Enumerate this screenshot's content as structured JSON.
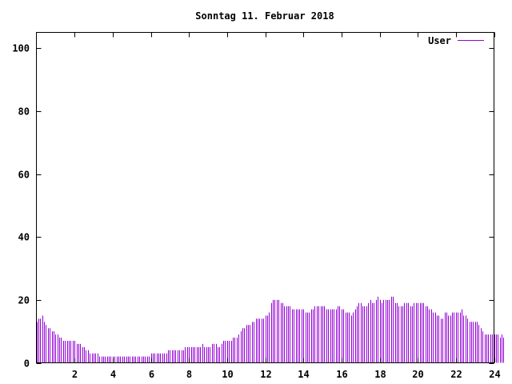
{
  "chart_data": {
    "type": "bar",
    "title": "Sonntag 11. Februar 2018",
    "xlabel": "",
    "ylabel": "",
    "xlim": [
      0,
      24
    ],
    "ylim": [
      0,
      105
    ],
    "x_ticks": [
      2,
      4,
      6,
      8,
      10,
      12,
      14,
      16,
      18,
      20,
      22,
      24
    ],
    "y_ticks": [
      0,
      20,
      40,
      60,
      80,
      100
    ],
    "grid": false,
    "legend_position": "top-right",
    "series": [
      {
        "name": "User",
        "color": "#9400d3",
        "interval_hours": 0.1,
        "values": [
          13,
          14,
          14,
          15,
          13,
          12,
          11,
          11,
          10,
          10,
          9,
          9,
          8,
          8,
          7,
          7,
          7,
          7,
          7,
          7,
          7,
          6,
          6,
          6,
          5,
          5,
          4,
          4,
          3,
          3,
          3,
          3,
          3,
          2,
          2,
          2,
          2,
          2,
          2,
          2,
          2,
          2,
          2,
          2,
          2,
          2,
          2,
          2,
          2,
          2,
          2,
          2,
          2,
          2,
          2,
          2,
          2,
          2,
          2,
          2,
          3,
          3,
          3,
          3,
          3,
          3,
          3,
          3,
          3,
          4,
          4,
          4,
          4,
          4,
          4,
          4,
          4,
          4,
          5,
          5,
          5,
          5,
          5,
          5,
          5,
          5,
          5,
          6,
          5,
          5,
          5,
          5,
          6,
          6,
          6,
          5,
          5,
          6,
          7,
          7,
          7,
          7,
          7,
          8,
          8,
          8,
          9,
          10,
          11,
          11,
          12,
          12,
          12,
          13,
          13,
          14,
          14,
          14,
          14,
          14,
          15,
          15,
          16,
          19,
          20,
          20,
          20,
          20,
          19,
          19,
          18,
          18,
          18,
          18,
          17,
          17,
          17,
          17,
          17,
          17,
          17,
          16,
          16,
          16,
          17,
          17,
          18,
          18,
          18,
          18,
          18,
          18,
          17,
          17,
          17,
          17,
          17,
          17,
          18,
          18,
          17,
          17,
          16,
          16,
          16,
          15,
          16,
          17,
          18,
          19,
          19,
          18,
          18,
          18,
          19,
          20,
          19,
          19,
          20,
          21,
          20,
          19,
          20,
          20,
          20,
          20,
          21,
          21,
          19,
          19,
          18,
          18,
          18,
          19,
          19,
          19,
          18,
          18,
          19,
          19,
          19,
          19,
          19,
          19,
          18,
          18,
          17,
          17,
          16,
          16,
          15,
          15,
          14,
          14,
          16,
          16,
          15,
          15,
          16,
          16,
          16,
          16,
          16,
          17,
          15,
          15,
          14,
          13,
          13,
          13,
          13,
          13,
          12,
          11,
          10,
          9,
          9,
          9,
          9,
          9,
          9,
          9,
          9,
          8,
          9,
          8
        ]
      }
    ]
  }
}
